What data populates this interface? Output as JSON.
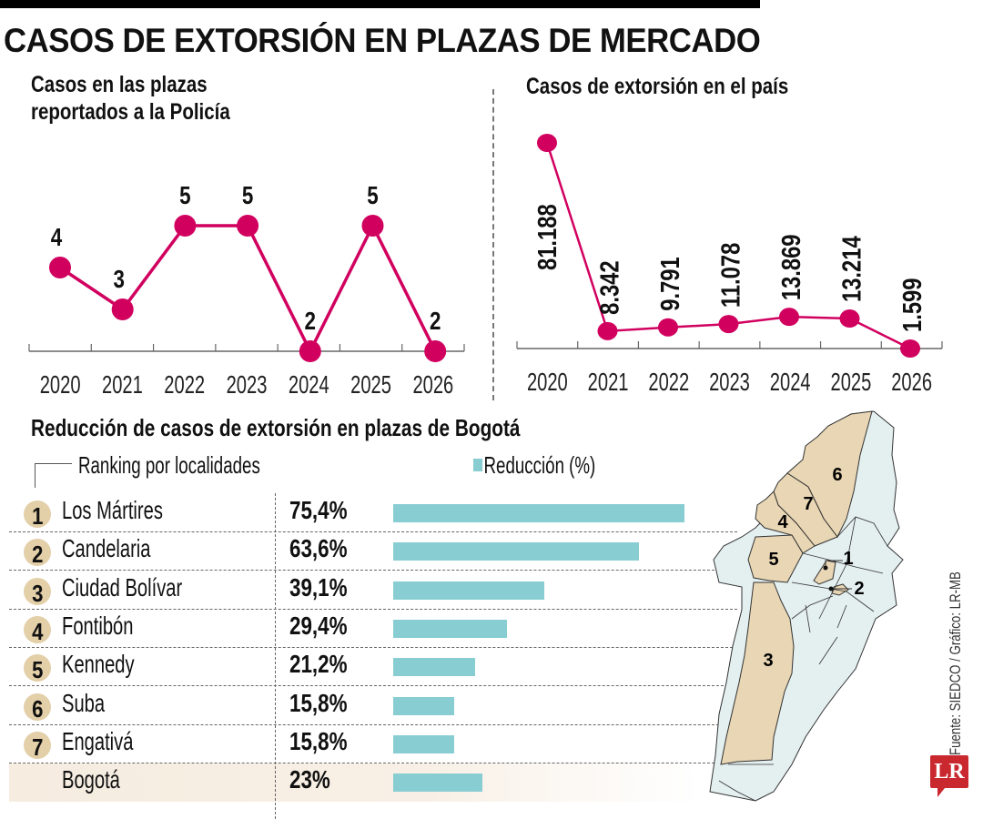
{
  "header": {
    "title": "CASOS DE EXTORSIÓN EN PLAZAS DE MERCADO"
  },
  "chart_data": [
    {
      "type": "line",
      "title": "Casos en las plazas reportados a la Policía",
      "title_lines": [
        "Casos en las plazas",
        "reportados a la Policía"
      ],
      "x": [
        "2020",
        "2021",
        "2022",
        "2023",
        "2024",
        "2025",
        "2026"
      ],
      "values": [
        4,
        3,
        5,
        5,
        2,
        5,
        2
      ],
      "labels": [
        "4",
        "3",
        "5",
        "5",
        "2",
        "5",
        "2"
      ],
      "ylim": [
        2,
        5
      ],
      "color": "#d1005f",
      "grid": false
    },
    {
      "type": "line",
      "title": "Casos de extorsión en el país",
      "x": [
        "2020",
        "2021",
        "2022",
        "2023",
        "2024",
        "2025",
        "2026"
      ],
      "values": [
        81188,
        8342,
        9791,
        11078,
        13869,
        13214,
        1599
      ],
      "labels": [
        "81.188",
        "8.342",
        "9.791",
        "11.078",
        "13.869",
        "13.214",
        "1.599"
      ],
      "ylim": [
        1599,
        81188
      ],
      "color": "#d1005f",
      "grid": false
    },
    {
      "type": "bar",
      "orientation": "horizontal",
      "title": "Reducción de casos de extorsión en plazas de Bogotá",
      "subtitle": "Ranking por localidades",
      "legend": "Reducción (%)",
      "legend_color": "#88cdd2",
      "categories": [
        "Los Mártires",
        "Candelaria",
        "Ciudad Bolívar",
        "Fontibón",
        "Kennedy",
        "Suba",
        "Engativá",
        "Bogotá"
      ],
      "ranks": [
        "1",
        "2",
        "3",
        "4",
        "5",
        "6",
        "7",
        ""
      ],
      "values": [
        75.4,
        63.6,
        39.1,
        29.4,
        21.2,
        15.8,
        15.8,
        23
      ],
      "labels": [
        "75,4%",
        "63,6%",
        "39,1%",
        "29,4%",
        "21,2%",
        "15,8%",
        "15,8%",
        "23%"
      ],
      "xlim": [
        0,
        75.4
      ]
    }
  ],
  "map": {
    "labels": [
      "1",
      "2",
      "3",
      "4",
      "5",
      "6",
      "7"
    ],
    "highlight_color": "#e8d6b4",
    "base_color": "#e4eff0"
  },
  "footer": {
    "source": "Fuente: SIEDCO / Gráfico: LR-MB",
    "logo": "LR"
  }
}
